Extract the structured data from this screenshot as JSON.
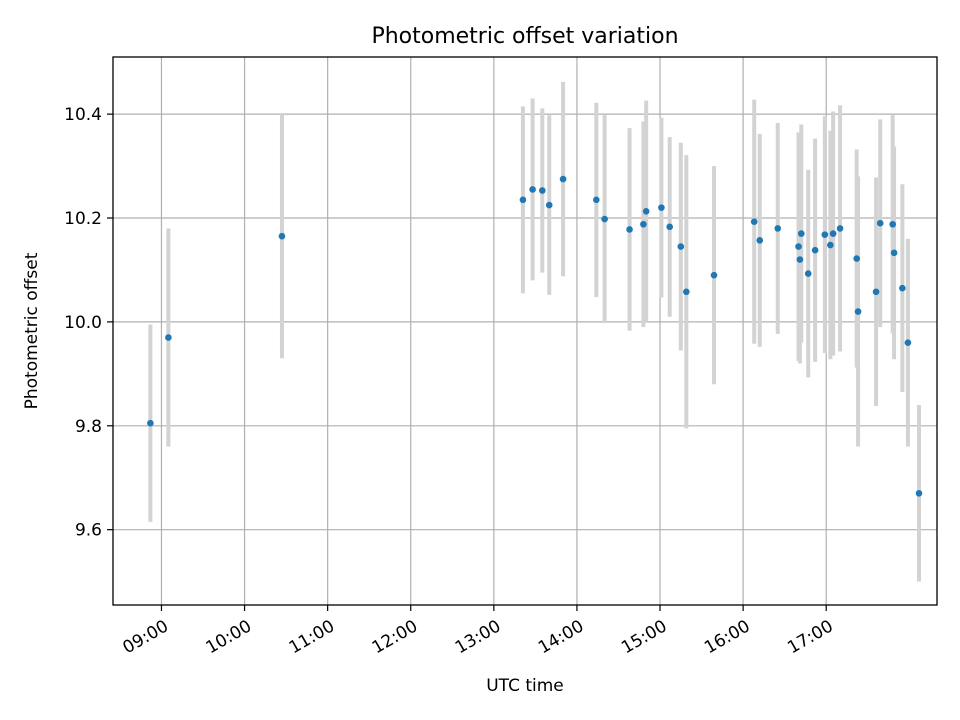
{
  "chart_data": {
    "type": "scatter",
    "title": "Photometric offset variation",
    "xlabel": "UTC time",
    "ylabel": "Photometric offset",
    "x_range": [
      "08:25",
      "18:20"
    ],
    "ylim": [
      9.455,
      10.51
    ],
    "grid": true,
    "x_ticks": [
      "09:00",
      "10:00",
      "11:00",
      "12:00",
      "13:00",
      "14:00",
      "15:00",
      "16:00",
      "17:00"
    ],
    "y_ticks": [
      "9.6",
      "9.8",
      "10.0",
      "10.2",
      "10.4"
    ],
    "marker_color": "#1f77b4",
    "errorbar_color": "#d3d3d3",
    "series": [
      {
        "points": [
          {
            "x": "08:52",
            "y": 9.805,
            "err": 0.19
          },
          {
            "x": "09:05",
            "y": 9.97,
            "err": 0.21
          },
          {
            "x": "10:27",
            "y": 10.165,
            "err": 0.235
          },
          {
            "x": "13:21",
            "y": 10.235,
            "err": 0.18
          },
          {
            "x": "13:28",
            "y": 10.255,
            "err": 0.175
          },
          {
            "x": "13:35",
            "y": 10.253,
            "err": 0.158
          },
          {
            "x": "13:40",
            "y": 10.225,
            "err": 0.173
          },
          {
            "x": "13:50",
            "y": 10.275,
            "err": 0.187
          },
          {
            "x": "14:14",
            "y": 10.235,
            "err": 0.187
          },
          {
            "x": "14:20",
            "y": 10.198,
            "err": 0.2
          },
          {
            "x": "14:38",
            "y": 10.178,
            "err": 0.195
          },
          {
            "x": "14:48",
            "y": 10.188,
            "err": 0.198
          },
          {
            "x": "14:50",
            "y": 10.213,
            "err": 0.213
          },
          {
            "x": "15:01",
            "y": 10.22,
            "err": 0.173
          },
          {
            "x": "15:07",
            "y": 10.183,
            "err": 0.173
          },
          {
            "x": "15:15",
            "y": 10.145,
            "err": 0.2
          },
          {
            "x": "15:19",
            "y": 10.058,
            "err": 0.263
          },
          {
            "x": "15:39",
            "y": 10.09,
            "err": 0.21
          },
          {
            "x": "16:08",
            "y": 10.193,
            "err": 0.235
          },
          {
            "x": "16:12",
            "y": 10.157,
            "err": 0.205
          },
          {
            "x": "16:25",
            "y": 10.18,
            "err": 0.203
          },
          {
            "x": "16:40",
            "y": 10.145,
            "err": 0.22
          },
          {
            "x": "16:41",
            "y": 10.12,
            "err": 0.2
          },
          {
            "x": "16:42",
            "y": 10.17,
            "err": 0.21
          },
          {
            "x": "16:47",
            "y": 10.093,
            "err": 0.2
          },
          {
            "x": "16:52",
            "y": 10.138,
            "err": 0.215
          },
          {
            "x": "16:59",
            "y": 10.168,
            "err": 0.228
          },
          {
            "x": "17:03",
            "y": 10.148,
            "err": 0.22
          },
          {
            "x": "17:05",
            "y": 10.17,
            "err": 0.235
          },
          {
            "x": "17:10",
            "y": 10.18,
            "err": 0.237
          },
          {
            "x": "17:22",
            "y": 10.122,
            "err": 0.21
          },
          {
            "x": "17:23",
            "y": 10.02,
            "err": 0.26
          },
          {
            "x": "17:36",
            "y": 10.058,
            "err": 0.22
          },
          {
            "x": "17:39",
            "y": 10.19,
            "err": 0.2
          },
          {
            "x": "17:48",
            "y": 10.188,
            "err": 0.21
          },
          {
            "x": "17:49",
            "y": 10.133,
            "err": 0.205
          },
          {
            "x": "17:55",
            "y": 10.065,
            "err": 0.2
          },
          {
            "x": "17:59",
            "y": 9.96,
            "err": 0.2
          },
          {
            "x": "18:07",
            "y": 9.67,
            "err": 0.17
          }
        ]
      }
    ]
  }
}
